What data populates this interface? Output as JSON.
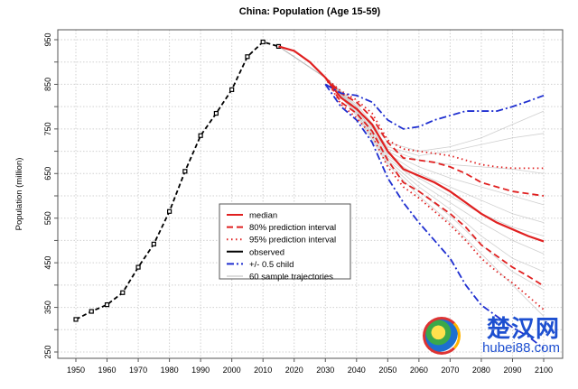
{
  "chart_data": {
    "type": "line",
    "title": "China: Population (Age 15-59)",
    "xlabel": "",
    "ylabel": "Population (million)",
    "xlim": [
      1950,
      2100
    ],
    "ylim": [
      250,
      950
    ],
    "x_ticks": [
      1950,
      1960,
      1970,
      1980,
      1990,
      2000,
      2010,
      2020,
      2030,
      2040,
      2050,
      2060,
      2070,
      2080,
      2090,
      2100
    ],
    "y_ticks": [
      250,
      350,
      450,
      550,
      650,
      750,
      850,
      950
    ],
    "grid": true,
    "legend_position": "center-left",
    "series": [
      {
        "name": "observed",
        "color": "#000000",
        "style": "dashed-points",
        "x": [
          1950,
          1955,
          1960,
          1965,
          1970,
          1975,
          1980,
          1985,
          1990,
          1995,
          2000,
          2005,
          2010,
          2015
        ],
        "y": [
          323,
          341,
          356,
          383,
          440,
          492,
          565,
          655,
          735,
          785,
          838,
          912,
          945,
          935
        ]
      },
      {
        "name": "median",
        "color": "#e02020",
        "style": "solid",
        "x": [
          2015,
          2020,
          2025,
          2030,
          2035,
          2040,
          2045,
          2050,
          2055,
          2060,
          2065,
          2070,
          2075,
          2080,
          2085,
          2090,
          2095,
          2100
        ],
        "y": [
          935,
          925,
          900,
          865,
          820,
          795,
          760,
          700,
          660,
          645,
          630,
          610,
          585,
          560,
          540,
          525,
          510,
          498
        ]
      },
      {
        "name": "80% prediction interval",
        "color": "#e02020",
        "style": "dashed",
        "x": [
          2030,
          2035,
          2040,
          2045,
          2050,
          2055,
          2060,
          2065,
          2070,
          2075,
          2080,
          2085,
          2090,
          2095,
          2100
        ],
        "y": [
          865,
          830,
          810,
          775,
          720,
          685,
          680,
          675,
          665,
          650,
          630,
          620,
          610,
          605,
          600
        ],
        "lower": [
          865,
          810,
          785,
          745,
          680,
          630,
          610,
          585,
          560,
          530,
          490,
          465,
          440,
          420,
          398
        ]
      },
      {
        "name": "95% prediction interval",
        "color": "#e02020",
        "style": "dotted",
        "x": [
          2030,
          2035,
          2040,
          2045,
          2050,
          2055,
          2060,
          2065,
          2070,
          2075,
          2080,
          2085,
          2090,
          2095,
          2100
        ],
        "y": [
          865,
          835,
          815,
          785,
          725,
          705,
          700,
          695,
          690,
          680,
          670,
          665,
          662,
          662,
          662
        ],
        "lower": [
          865,
          805,
          775,
          735,
          665,
          620,
          595,
          565,
          535,
          500,
          460,
          430,
          405,
          375,
          345
        ]
      },
      {
        "name": "+/- 0.5 child",
        "color": "#1f2fd0",
        "style": "dashdot",
        "x": [
          2030,
          2035,
          2040,
          2045,
          2050,
          2055,
          2060,
          2065,
          2070,
          2075,
          2080,
          2085,
          2090,
          2095,
          2100
        ],
        "y": [
          850,
          830,
          825,
          810,
          770,
          750,
          755,
          770,
          780,
          790,
          790,
          790,
          800,
          812,
          825
        ],
        "lower": [
          850,
          800,
          770,
          720,
          640,
          585,
          540,
          500,
          460,
          400,
          355,
          330,
          305,
          285,
          258
        ]
      },
      {
        "name": "60 sample trajectories",
        "color": "#bbbbbb",
        "style": "solid-thin",
        "x": [
          2015,
          2030,
          2040,
          2050,
          2060,
          2070,
          2080,
          2090,
          2100
        ],
        "trajectories": [
          [
            935,
            865,
            805,
            720,
            700,
            710,
            730,
            760,
            790
          ],
          [
            935,
            865,
            800,
            710,
            690,
            700,
            715,
            730,
            740
          ],
          [
            935,
            865,
            800,
            705,
            680,
            670,
            665,
            660,
            650
          ],
          [
            935,
            865,
            795,
            700,
            665,
            640,
            620,
            600,
            580
          ],
          [
            935,
            865,
            795,
            695,
            650,
            620,
            590,
            560,
            540
          ],
          [
            935,
            865,
            790,
            690,
            640,
            600,
            560,
            530,
            510
          ],
          [
            935,
            865,
            790,
            685,
            630,
            585,
            540,
            500,
            470
          ],
          [
            935,
            865,
            785,
            680,
            620,
            570,
            510,
            460,
            430
          ],
          [
            935,
            865,
            785,
            675,
            610,
            555,
            490,
            430,
            390
          ],
          [
            935,
            865,
            780,
            670,
            600,
            540,
            470,
            400,
            330
          ]
        ]
      }
    ]
  },
  "watermark": {
    "cn": "楚汉网",
    "en": "hubei88.com"
  }
}
